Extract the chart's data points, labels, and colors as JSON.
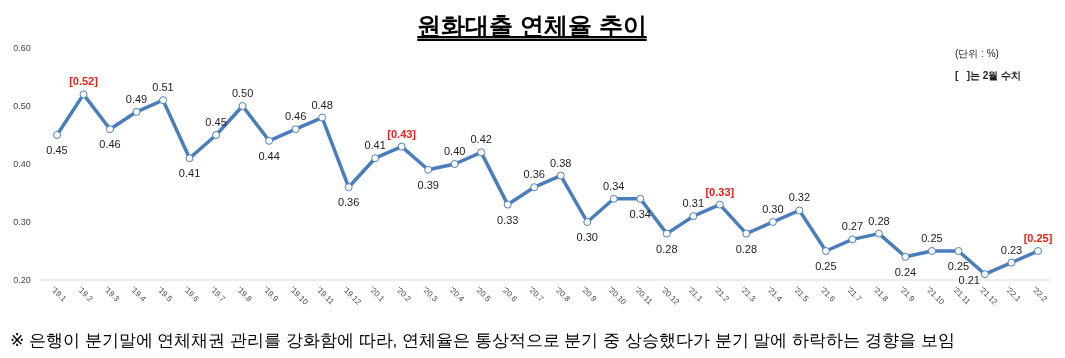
{
  "chart_data": {
    "type": "line",
    "title": "원화대출 연체율 추이",
    "categories": [
      "'19.1",
      "'19.2",
      "'19.3",
      "'19.4",
      "'19.5",
      "'19.6",
      "'19.7",
      "'19.8",
      "'19.9",
      "'19.10",
      "'19.11",
      "'19.12",
      "'20.1",
      "'20.2",
      "'20.3",
      "'20.4",
      "'20.5",
      "'20.6",
      "'20.7",
      "'20.8",
      "'20.9",
      "'20.10",
      "'20.11",
      "'20.12",
      "'21.1",
      "'21.2",
      "'21.3",
      "'21.4",
      "'21.5",
      "'21.6",
      "'21.7",
      "'21.8",
      "'21.9",
      "'21.10",
      "'21.11",
      "'21.12",
      "'22.1",
      "'22.2"
    ],
    "series": [
      {
        "color": "#4a7ebb",
        "values": [
          0.45,
          0.52,
          0.46,
          0.49,
          0.51,
          0.41,
          0.45,
          0.5,
          0.44,
          0.46,
          0.48,
          0.36,
          0.41,
          0.43,
          0.39,
          0.4,
          0.42,
          0.33,
          0.36,
          0.38,
          0.3,
          0.34,
          0.34,
          0.28,
          0.31,
          0.33,
          0.28,
          0.3,
          0.32,
          0.25,
          0.27,
          0.28,
          0.24,
          0.25,
          0.25,
          0.21,
          0.23,
          0.25
        ],
        "value_labels": [
          "0.45",
          null,
          "0.46",
          "0.49",
          "0.51",
          "0.41",
          "0.45",
          "0.50",
          "0.44",
          "0.46",
          "0.48",
          "0.36",
          "0.41",
          null,
          "0.39",
          "0.40",
          "0.42",
          "0.33",
          "0.36",
          "0.38",
          "0.30",
          "0.34",
          "0.34",
          "0.28",
          "0.31",
          null,
          "0.28",
          "0.30",
          "0.32",
          "0.25",
          "0.27",
          "0.28",
          "0.24",
          "0.25",
          "0.25",
          "0.21",
          "0.23",
          null
        ]
      }
    ],
    "ylim": [
      0.2,
      0.6
    ],
    "yticks": [
      {
        "value": 0.2,
        "label": "0.20"
      },
      {
        "value": 0.3,
        "label": "0.30"
      },
      {
        "value": 0.4,
        "label": "0.40"
      },
      {
        "value": 0.5,
        "label": "0.50"
      },
      {
        "value": 0.6,
        "label": "0.60"
      }
    ],
    "marker": "circle",
    "grid": false,
    "annotations": [
      "(단위 : %)",
      "[   ]는 2월 수치",
      "※ 은행이 분기말에 연체채권 관리를 강화함에 따라, 연체율은 통상적으로 분기 중 상승했다가 분기 말에 하락하는 경향을 보임",
      {
        "text": "[0.52]",
        "x": "'19.2",
        "y": 0.52
      },
      {
        "text": "[0.43]",
        "x": "'20.2",
        "y": 0.43
      },
      {
        "text": "[0.33]",
        "x": "'21.2",
        "y": 0.33
      },
      {
        "text": "[0.25]",
        "x": "'22.2",
        "y": 0.25
      }
    ]
  }
}
